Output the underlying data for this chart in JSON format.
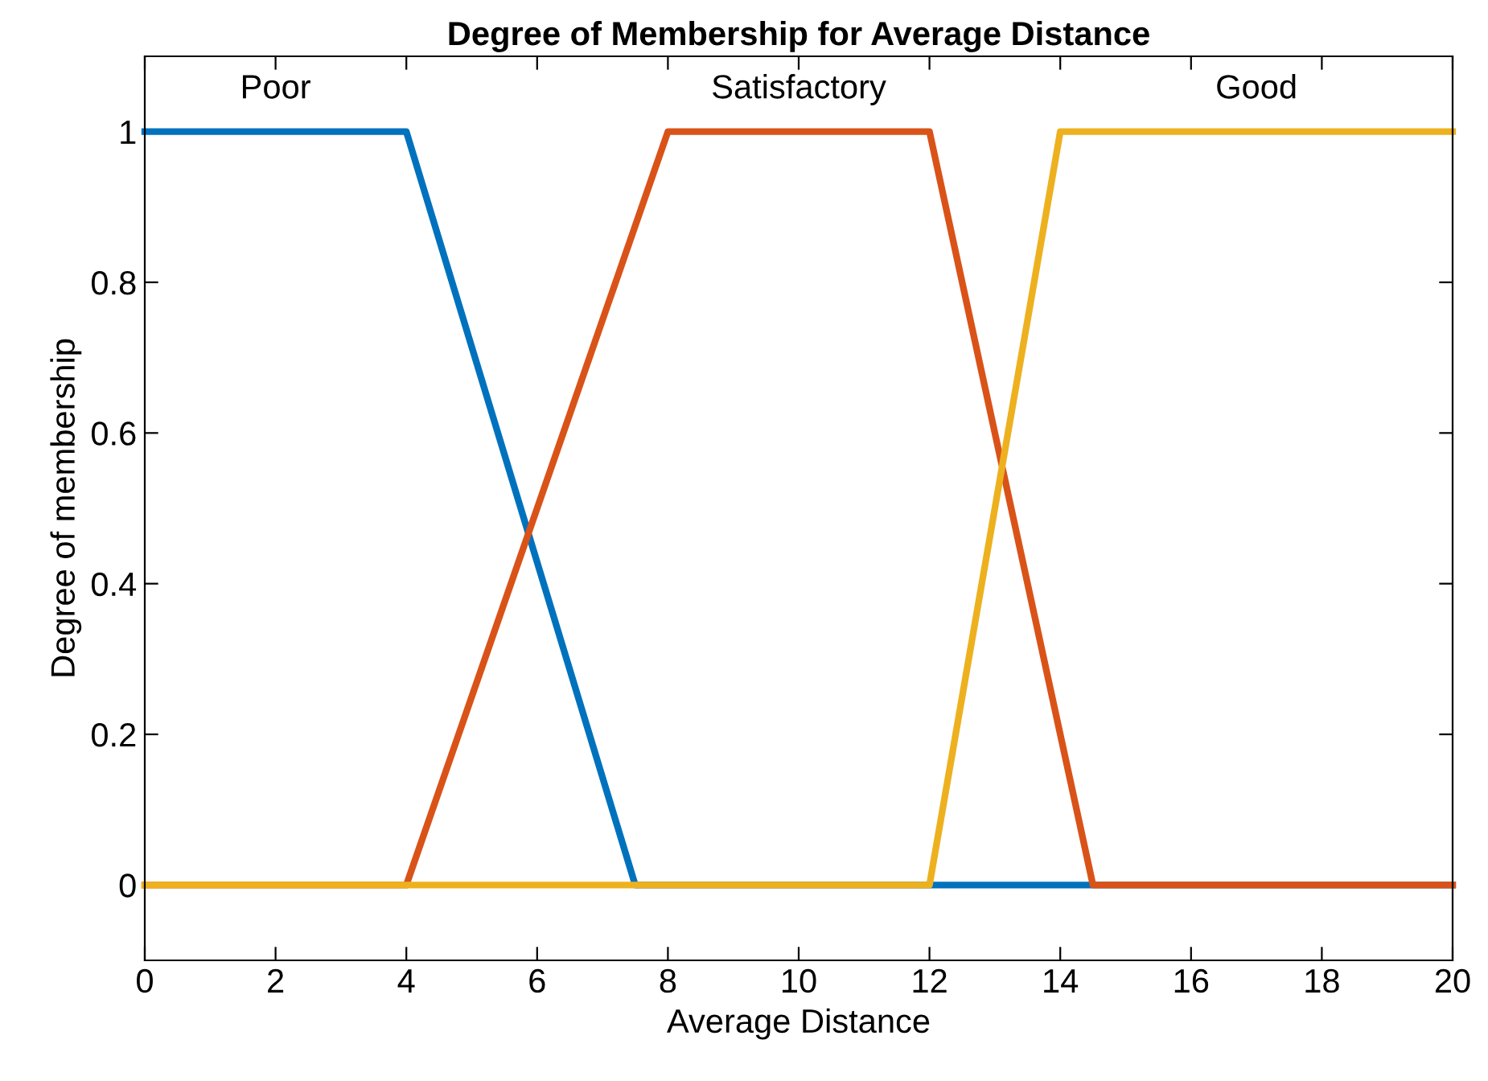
{
  "chart_data": {
    "type": "line",
    "title": "Degree of Membership for Average Distance",
    "xlabel": "Average Distance",
    "ylabel": "Degree of membership",
    "series": [
      {
        "name": "Poor",
        "color": "#0072bd",
        "x": [
          0,
          4,
          7.5,
          20
        ],
        "values": [
          1,
          1,
          0,
          0
        ]
      },
      {
        "name": "Satisfactory",
        "color": "#d95319",
        "x": [
          0,
          4,
          8,
          12,
          14.5,
          20
        ],
        "values": [
          0,
          0,
          1,
          1,
          0,
          0
        ]
      },
      {
        "name": "Good",
        "color": "#edb120",
        "x": [
          0,
          12,
          14,
          20
        ],
        "values": [
          0,
          0,
          1,
          1
        ]
      }
    ],
    "xlim": [
      0,
      20
    ],
    "ylim": [
      -0.1,
      1.1
    ],
    "xticks": [
      0,
      2,
      4,
      6,
      8,
      10,
      12,
      14,
      16,
      18,
      20
    ],
    "yticks": [
      0,
      0.2,
      0.4,
      0.6,
      0.8,
      1
    ],
    "grid": false,
    "legend": false,
    "marker": "none",
    "line_style": "solid"
  }
}
